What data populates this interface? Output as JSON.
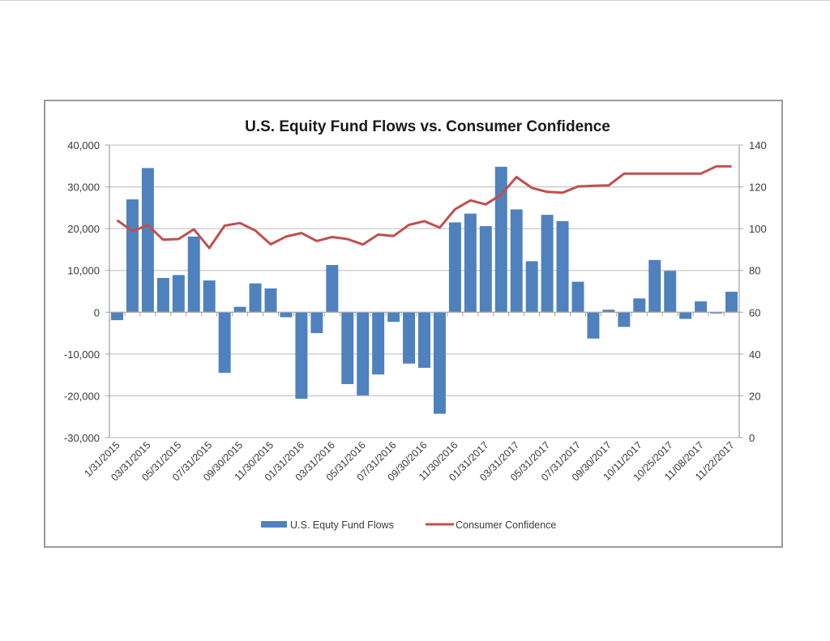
{
  "chart_data": {
    "type": "bar",
    "combo": "bar + line (dual axis)",
    "title": "U.S. Equity Fund Flows vs. Consumer Confidence",
    "xlabel": "",
    "ylabel": "",
    "ylabel_right": "",
    "ylim": [
      -30000,
      40000
    ],
    "ylim_right": [
      0,
      140
    ],
    "yticks": [
      "-30,000",
      "-20,000",
      "-10,000",
      "0",
      "10,000",
      "20,000",
      "30,000",
      "40,000"
    ],
    "yticks_values": [
      -30000,
      -20000,
      -10000,
      0,
      10000,
      20000,
      30000,
      40000
    ],
    "yticks_right": [
      "0",
      "20",
      "40",
      "60",
      "80",
      "100",
      "120",
      "140"
    ],
    "yticks_right_values": [
      0,
      20,
      40,
      60,
      80,
      100,
      120,
      140
    ],
    "grid": true,
    "legend": "bottom",
    "categories": [
      "1/31/2015",
      "",
      "03/31/2015",
      "",
      "05/31/2015",
      "",
      "07/31/2015",
      "",
      "09/30/2015",
      "",
      "11/30/2015",
      "",
      "01/31/2016",
      "",
      "03/31/2016",
      "",
      "05/31/2016",
      "",
      "07/31/2016",
      "",
      "09/30/2016",
      "",
      "11/30/2016",
      "",
      "01/31/2017",
      "",
      "03/31/2017",
      "",
      "05/31/2017",
      "",
      "07/31/2017",
      "",
      "09/30/2017",
      "",
      "10/11/2017",
      "",
      "10/25/2017",
      "",
      "11/08/2017",
      "",
      "11/22/2017"
    ],
    "series": [
      {
        "name": "U.S. Equty Fund Flows",
        "type": "bar",
        "axis": "left",
        "color": "#4f81bd",
        "values": [
          -1900,
          27000,
          34500,
          8200,
          8900,
          18100,
          7600,
          -14500,
          1300,
          6900,
          5700,
          -1200,
          -20700,
          -5000,
          11300,
          -17200,
          -19900,
          -14900,
          -2300,
          -12300,
          -13300,
          -24300,
          21500,
          23600,
          20600,
          34800,
          24600,
          12200,
          23300,
          21800,
          7300,
          -6300,
          600,
          -3500,
          3300,
          12500,
          9900,
          -1600,
          2600,
          -300,
          4900
        ]
      },
      {
        "name": "Consumer Confidence",
        "type": "line",
        "axis": "right",
        "color": "#c0504d",
        "values": [
          104.0,
          98.8,
          101.7,
          94.7,
          95.0,
          99.7,
          90.7,
          101.4,
          102.7,
          99.1,
          92.5,
          96.2,
          97.9,
          94.1,
          96.0,
          95.0,
          92.4,
          97.2,
          96.5,
          101.8,
          103.6,
          100.5,
          109.3,
          113.5,
          111.6,
          116.3,
          124.7,
          119.5,
          117.6,
          117.2,
          120.2,
          120.5,
          120.7,
          126.3,
          126.3,
          126.3,
          126.3,
          126.3,
          126.3,
          129.8,
          129.8
        ]
      }
    ]
  },
  "colors": {
    "bar": "#4f81bd",
    "line": "#c0504d",
    "grid": "#c8c8c8",
    "axis": "#a6a6a6",
    "frame": "#9a9a9a"
  }
}
